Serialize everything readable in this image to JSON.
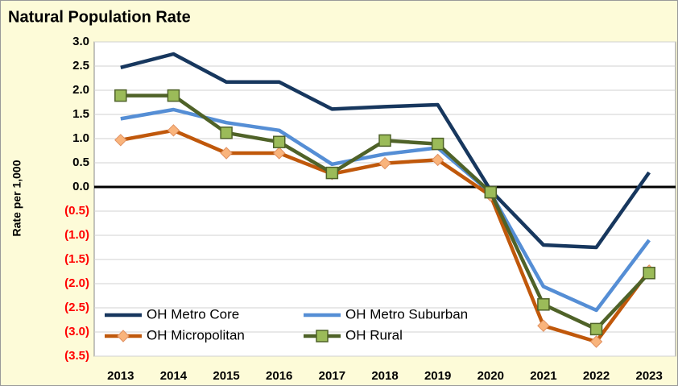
{
  "chart_data": {
    "type": "line",
    "title": "Natural Population Rate",
    "y_label": "Rate per 1,000",
    "categories": [
      "2013",
      "2014",
      "2015",
      "2016",
      "2017",
      "2018",
      "2019",
      "2020",
      "2021",
      "2022",
      "2023"
    ],
    "series": [
      {
        "name": "OH Metro Core",
        "color": "#17375e",
        "marker": null,
        "values": [
          2.47,
          2.75,
          2.17,
          2.17,
          1.61,
          1.66,
          1.7,
          -0.07,
          -1.2,
          -1.25,
          0.3
        ]
      },
      {
        "name": "OH Metro Suburban",
        "color": "#558ed5",
        "marker": null,
        "values": [
          1.41,
          1.6,
          1.33,
          1.17,
          0.47,
          0.68,
          0.81,
          -0.12,
          -2.06,
          -2.55,
          -1.1
        ]
      },
      {
        "name": "OH Micropolitan",
        "color": "#c0580b",
        "marker": "diamond",
        "marker_color": "#f9b47c",
        "values": [
          0.97,
          1.17,
          0.7,
          0.7,
          0.27,
          0.49,
          0.56,
          -0.18,
          -2.87,
          -3.2,
          -1.73
        ]
      },
      {
        "name": "OH Rural",
        "color": "#4f6228",
        "marker": "square",
        "marker_color": "#9bbb59",
        "values": [
          1.89,
          1.89,
          1.12,
          0.93,
          0.29,
          0.96,
          0.89,
          -0.11,
          -2.43,
          -2.94,
          -1.78
        ]
      }
    ],
    "ylim": [
      -3.5,
      3.0
    ],
    "yticks": [
      {
        "value": 3.0,
        "label": "3.0"
      },
      {
        "value": 2.5,
        "label": "2.5"
      },
      {
        "value": 2.0,
        "label": "2.0"
      },
      {
        "value": 1.5,
        "label": "1.5"
      },
      {
        "value": 1.0,
        "label": "1.0"
      },
      {
        "value": 0.5,
        "label": "0.5"
      },
      {
        "value": 0,
        "label": "0.0"
      },
      {
        "value": -0.5,
        "label": "(0.5)"
      },
      {
        "value": -1.0,
        "label": "(1.0)"
      },
      {
        "value": -1.5,
        "label": "(1.5)"
      },
      {
        "value": -2.0,
        "label": "(2.0)"
      },
      {
        "value": -2.5,
        "label": "(2.5)"
      },
      {
        "value": -3.0,
        "label": "(3.0)"
      },
      {
        "value": -3.5,
        "label": "(3.5)"
      }
    ],
    "negative_tick_color": "#ff0000",
    "grid": true,
    "legend": "lower left"
  }
}
